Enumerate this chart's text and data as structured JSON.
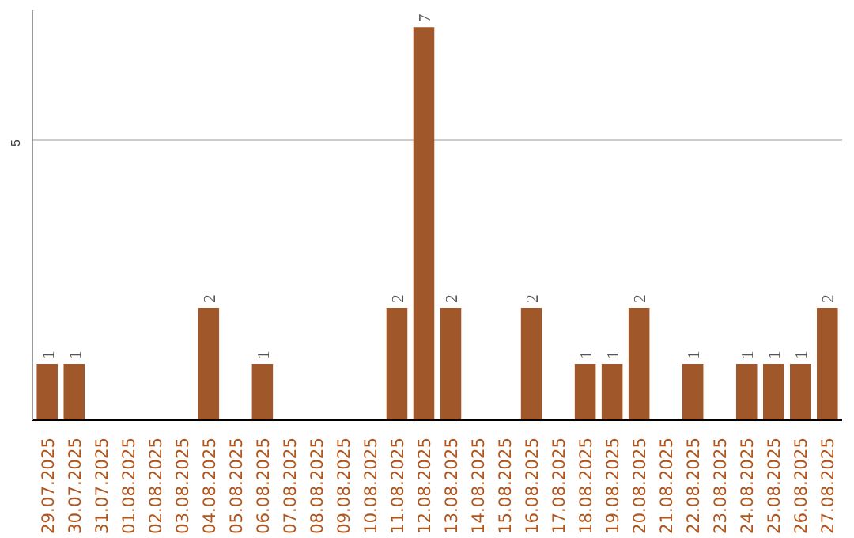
{
  "chart_data": {
    "type": "bar",
    "categories": [
      "29.07.2025",
      "30.07.2025",
      "31.07.2025",
      "01.08.2025",
      "02.08.2025",
      "03.08.2025",
      "04.08.2025",
      "05.08.2025",
      "06.08.2025",
      "07.08.2025",
      "08.08.2025",
      "09.08.2025",
      "10.08.2025",
      "11.08.2025",
      "12.08.2025",
      "13.08.2025",
      "14.08.2025",
      "15.08.2025",
      "16.08.2025",
      "17.08.2025",
      "18.08.2025",
      "19.08.2025",
      "20.08.2025",
      "21.08.2025",
      "22.08.2025",
      "23.08.2025",
      "24.08.2025",
      "25.08.2025",
      "26.08.2025",
      "27.08.2025"
    ],
    "values": [
      1,
      1,
      0,
      0,
      0,
      0,
      2,
      0,
      1,
      0,
      0,
      0,
      0,
      2,
      7,
      2,
      0,
      0,
      2,
      0,
      1,
      1,
      2,
      0,
      1,
      0,
      1,
      1,
      1,
      2
    ],
    "value_labels": [
      "1",
      "1",
      null,
      null,
      null,
      null,
      "2",
      null,
      "1",
      null,
      null,
      null,
      null,
      "2",
      "7",
      "2",
      null,
      null,
      "2",
      null,
      "1",
      "1",
      "2",
      null,
      "1",
      null,
      "1",
      "1",
      "1",
      "2"
    ],
    "color": "#a0572a",
    "ylim": [
      0,
      7.3
    ],
    "yticks": [
      5
    ],
    "grid": "y"
  }
}
